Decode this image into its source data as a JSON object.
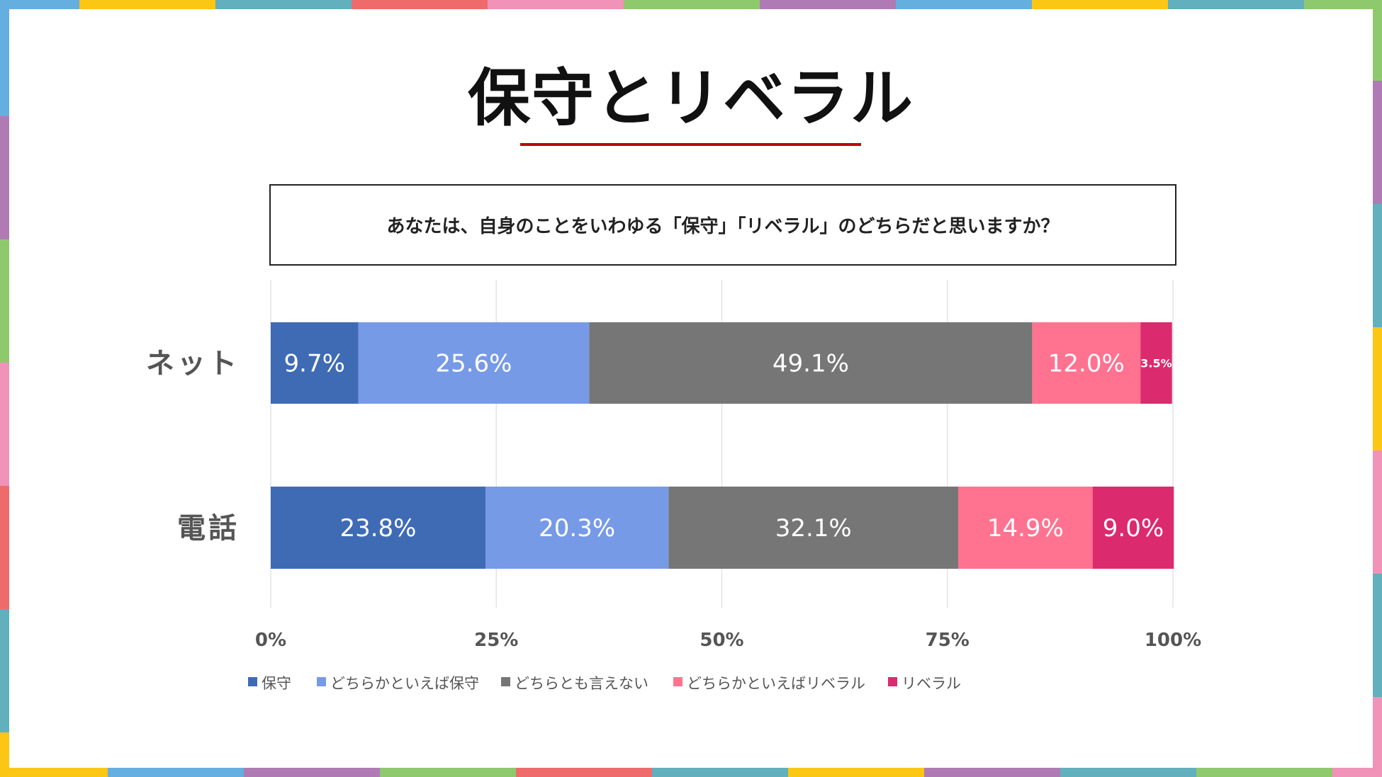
{
  "title": "保守とリベラル",
  "question": "あなたは、自身のことをいわゆる「保守」「リベラル」のどちらだと思いますか？",
  "border_colors": {
    "top": [
      "#65aee0",
      "#fcc614",
      "#62afbd",
      "#ef6b6b",
      "#f192b8",
      "#8fc96e",
      "#b07bb5",
      "#65aee0",
      "#fcc614",
      "#62afbd",
      "#8fc96e"
    ],
    "bottom": [
      "#fcc614",
      "#65aee0",
      "#b07bb5",
      "#8fc96e",
      "#ef6b6b",
      "#62afbd",
      "#fcc614",
      "#b07bb5",
      "#62afbd",
      "#8fc96e",
      "#f192b8"
    ],
    "left": [
      "#65aee0",
      "#b07bb5",
      "#8fc96e",
      "#f192b8",
      "#ef6b6b",
      "#62afbd",
      "#fcc614"
    ],
    "right": [
      "#8fc96e",
      "#b07bb5",
      "#62afbd",
      "#fcc614",
      "#f192b8",
      "#62afbd",
      "#f192b8"
    ]
  },
  "chart_data": {
    "type": "bar",
    "orientation": "horizontal-stacked-100",
    "categories": [
      "ネット",
      "電話"
    ],
    "series": [
      {
        "name": "保守",
        "color": "#3f6bb5",
        "values": [
          9.7,
          23.8
        ],
        "labels": [
          "9.7%",
          "23.8%"
        ]
      },
      {
        "name": "どちらかといえば保守",
        "color": "#779ae6",
        "values": [
          25.6,
          20.3
        ],
        "labels": [
          "25.6%",
          "20.3%"
        ]
      },
      {
        "name": "どちらとも言えない",
        "color": "#767676",
        "values": [
          49.1,
          32.1
        ],
        "labels": [
          "49.1%",
          "32.1%"
        ]
      },
      {
        "name": "どちらかといえばリベラル",
        "color": "#ff7390",
        "values": [
          12.0,
          14.9
        ],
        "labels": [
          "12.0%",
          "14.9%"
        ]
      },
      {
        "name": "リベラル",
        "color": "#dc2a6e",
        "values": [
          3.5,
          9.0
        ],
        "labels": [
          "3.5%",
          "9.0%"
        ]
      }
    ],
    "xticks": [
      0,
      25,
      50,
      75,
      100
    ],
    "xtick_labels": [
      "0%",
      "25%",
      "50%",
      "75%",
      "100%"
    ],
    "xlim": [
      0,
      100
    ],
    "grid": true,
    "legend": "bottom"
  }
}
